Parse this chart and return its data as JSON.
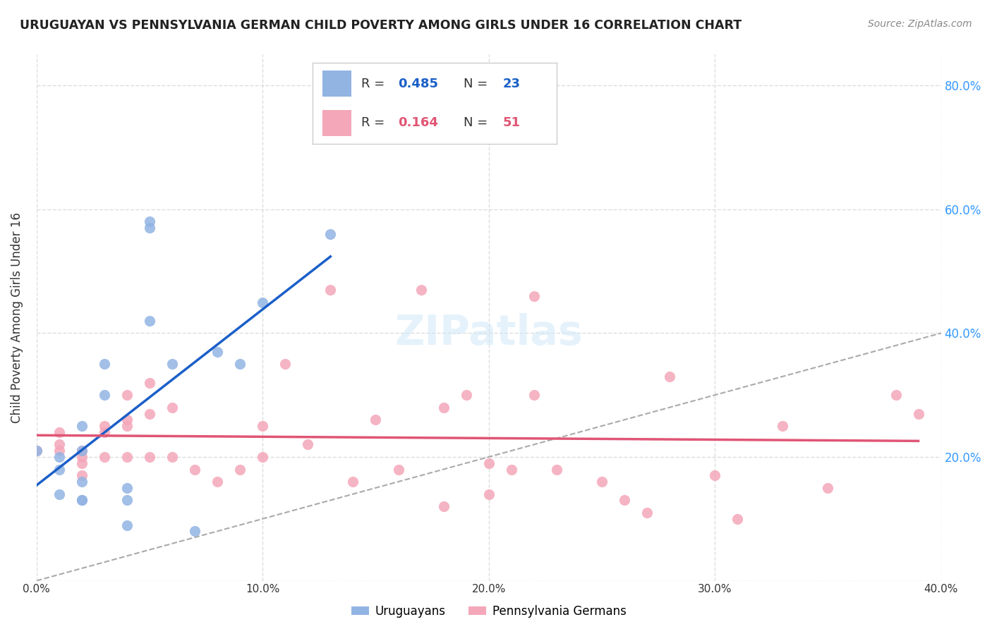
{
  "title": "URUGUAYAN VS PENNSYLVANIA GERMAN CHILD POVERTY AMONG GIRLS UNDER 16 CORRELATION CHART",
  "source": "Source: ZipAtlas.com",
  "ylabel": "Child Poverty Among Girls Under 16",
  "xlabel": "",
  "xlim": [
    0.0,
    0.4
  ],
  "ylim": [
    0.0,
    0.85
  ],
  "yticks": [
    0.0,
    0.2,
    0.4,
    0.6,
    0.8
  ],
  "xticks": [
    0.0,
    0.1,
    0.2,
    0.3,
    0.4
  ],
  "xtick_labels": [
    "0.0%",
    "10.0%",
    "20.0%",
    "30.0%",
    "40.0%"
  ],
  "ytick_labels": [
    "",
    "20.0%",
    "40.0%",
    "60.0%",
    "80.0%"
  ],
  "uruguayan_color": "#92b4e3",
  "penn_german_color": "#f4a7b9",
  "uruguayan_line_color": "#1a5fc8",
  "penn_german_line_color": "#e05575",
  "r_uruguayan": 0.485,
  "n_uruguayan": 23,
  "r_penn_german": 0.164,
  "n_penn_german": 51,
  "legend_r_color": "#1a5fc8",
  "legend_n_color": "#e05575",
  "uruguayan_x": [
    0.0,
    0.01,
    0.01,
    0.01,
    0.02,
    0.02,
    0.02,
    0.02,
    0.02,
    0.03,
    0.03,
    0.04,
    0.04,
    0.04,
    0.05,
    0.05,
    0.05,
    0.06,
    0.07,
    0.08,
    0.09,
    0.1,
    0.13
  ],
  "uruguayan_y": [
    0.21,
    0.18,
    0.2,
    0.14,
    0.25,
    0.21,
    0.16,
    0.13,
    0.13,
    0.35,
    0.3,
    0.15,
    0.13,
    0.09,
    0.58,
    0.57,
    0.42,
    0.35,
    0.08,
    0.37,
    0.35,
    0.45,
    0.56
  ],
  "penn_german_x": [
    0.0,
    0.01,
    0.01,
    0.01,
    0.02,
    0.02,
    0.02,
    0.02,
    0.03,
    0.03,
    0.03,
    0.04,
    0.04,
    0.04,
    0.04,
    0.05,
    0.05,
    0.05,
    0.06,
    0.06,
    0.07,
    0.08,
    0.09,
    0.1,
    0.1,
    0.11,
    0.12,
    0.13,
    0.14,
    0.15,
    0.16,
    0.17,
    0.18,
    0.18,
    0.19,
    0.2,
    0.2,
    0.21,
    0.22,
    0.22,
    0.23,
    0.25,
    0.26,
    0.27,
    0.28,
    0.3,
    0.31,
    0.33,
    0.35,
    0.38,
    0.39
  ],
  "penn_german_y": [
    0.21,
    0.24,
    0.22,
    0.21,
    0.21,
    0.2,
    0.19,
    0.17,
    0.25,
    0.24,
    0.2,
    0.3,
    0.26,
    0.25,
    0.2,
    0.32,
    0.27,
    0.2,
    0.28,
    0.2,
    0.18,
    0.16,
    0.18,
    0.25,
    0.2,
    0.35,
    0.22,
    0.47,
    0.16,
    0.26,
    0.18,
    0.47,
    0.28,
    0.12,
    0.3,
    0.14,
    0.19,
    0.18,
    0.46,
    0.3,
    0.18,
    0.16,
    0.13,
    0.11,
    0.33,
    0.17,
    0.1,
    0.25,
    0.15,
    0.3,
    0.27
  ],
  "watermark": "ZIPatlas",
  "background_color": "#ffffff",
  "grid_color": "#dddddd",
  "figsize": [
    14.06,
    8.92
  ],
  "dpi": 100
}
